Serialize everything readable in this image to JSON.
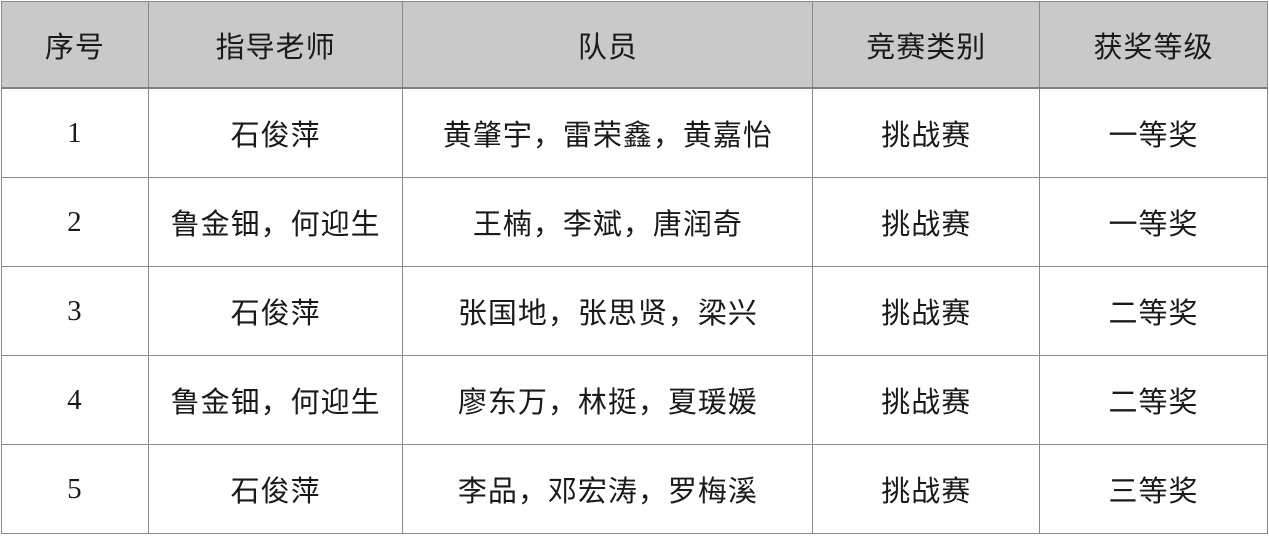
{
  "table": {
    "headers": [
      "序号",
      "指导老师",
      "队员",
      "竞赛类别",
      "获奖等级"
    ],
    "rows": [
      [
        "1",
        "石俊萍",
        "黄肇宇，雷荣鑫，黄嘉怡",
        "挑战赛",
        "一等奖"
      ],
      [
        "2",
        "鲁金钿，何迎生",
        "王楠，李斌，唐润奇",
        "挑战赛",
        "一等奖"
      ],
      [
        "3",
        "石俊萍",
        "张国地，张思贤，梁兴",
        "挑战赛",
        "二等奖"
      ],
      [
        "4",
        "鲁金钿，何迎生",
        "廖东万，林挺，夏瑗媛",
        "挑战赛",
        "二等奖"
      ],
      [
        "5",
        "石俊萍",
        "李品，邓宏涛，罗梅溪",
        "挑战赛",
        "三等奖"
      ]
    ],
    "column_keys": [
      "no",
      "teacher",
      "members",
      "category",
      "award"
    ]
  },
  "colors": {
    "header_bg": "#c9c9c9",
    "row_bg": "#ffffff",
    "border": "#8a8a8a",
    "text": "#1a1a1a"
  }
}
